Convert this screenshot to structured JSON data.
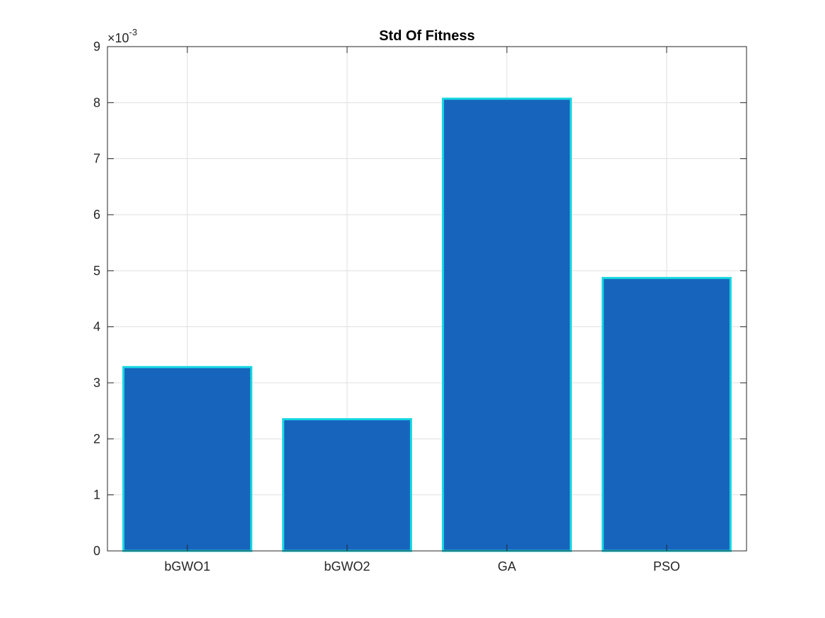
{
  "chart_data": {
    "type": "bar",
    "title": "Std Of Fitness",
    "xlabel": "",
    "ylabel": "",
    "categories": [
      "bGWO1",
      "bGWO2",
      "GA",
      "PSO"
    ],
    "values": [
      0.00328,
      0.00235,
      0.00807,
      0.00487
    ],
    "ylim": [
      0,
      0.009
    ],
    "yticks": [
      0,
      0.001,
      0.002,
      0.003,
      0.004,
      0.005,
      0.006,
      0.007,
      0.008,
      0.009
    ],
    "ytick_labels": [
      "0",
      "1",
      "2",
      "3",
      "4",
      "5",
      "6",
      "7",
      "8",
      "9"
    ],
    "y_exponent": {
      "base": "×10",
      "power": "-3"
    },
    "grid": true,
    "legend": "none",
    "colors": {
      "bar_fill": "#1764BD",
      "bar_edge": "#15D7E0",
      "axis": "#262626",
      "grid": "#DFDFDF"
    }
  }
}
